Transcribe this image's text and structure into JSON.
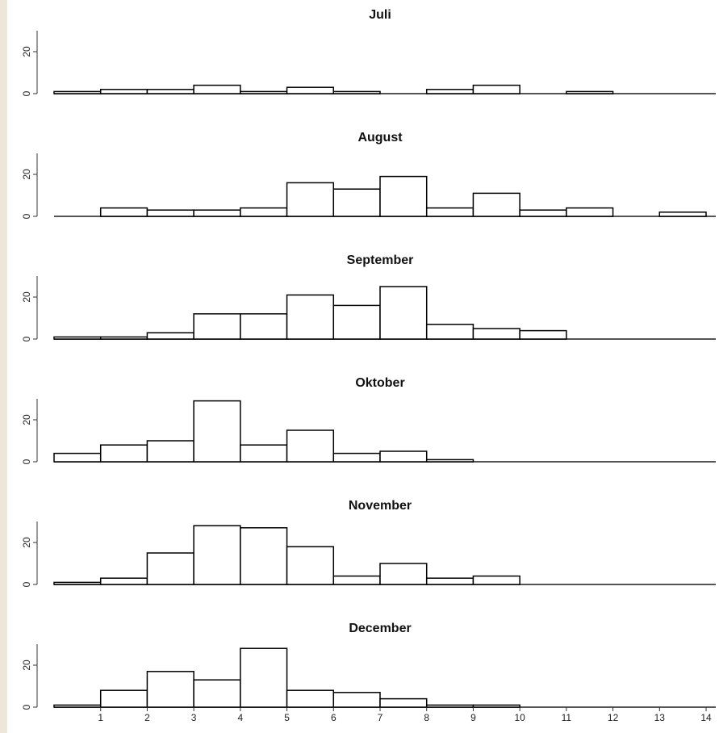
{
  "chart_data": {
    "type": "bar",
    "bin_edges": [
      0,
      1,
      2,
      3,
      4,
      5,
      6,
      7,
      8,
      9,
      10,
      11,
      12,
      13,
      14
    ],
    "x_tick_labels": [
      "1",
      "2",
      "3",
      "4",
      "5",
      "6",
      "7",
      "8",
      "9",
      "10",
      "11",
      "12",
      "13",
      "14"
    ],
    "y_tick_labels": [
      "0",
      "20"
    ],
    "ylim": [
      0,
      30
    ],
    "xlim": [
      0,
      14
    ],
    "grid": false,
    "bar_fill": "#ffffff",
    "bar_stroke": "#000000",
    "panels": [
      {
        "title": "Juli",
        "values": [
          1,
          2,
          2,
          4,
          1,
          3,
          1,
          0,
          2,
          4,
          0,
          1,
          0,
          0
        ]
      },
      {
        "title": "August",
        "values": [
          0,
          4,
          3,
          3,
          4,
          16,
          13,
          19,
          4,
          11,
          3,
          4,
          0,
          2
        ]
      },
      {
        "title": "September",
        "values": [
          1,
          1,
          3,
          12,
          12,
          21,
          16,
          25,
          7,
          5,
          4,
          0,
          0,
          0
        ]
      },
      {
        "title": "Oktober",
        "values": [
          4,
          8,
          10,
          29,
          8,
          15,
          4,
          5,
          1,
          0,
          0,
          0,
          0,
          0
        ]
      },
      {
        "title": "November",
        "values": [
          1,
          3,
          15,
          28,
          27,
          18,
          4,
          10,
          3,
          4,
          0,
          0,
          0,
          0
        ]
      },
      {
        "title": "December",
        "values": [
          1,
          8,
          17,
          13,
          28,
          8,
          7,
          4,
          1,
          1,
          0,
          0,
          0,
          0
        ]
      }
    ]
  }
}
